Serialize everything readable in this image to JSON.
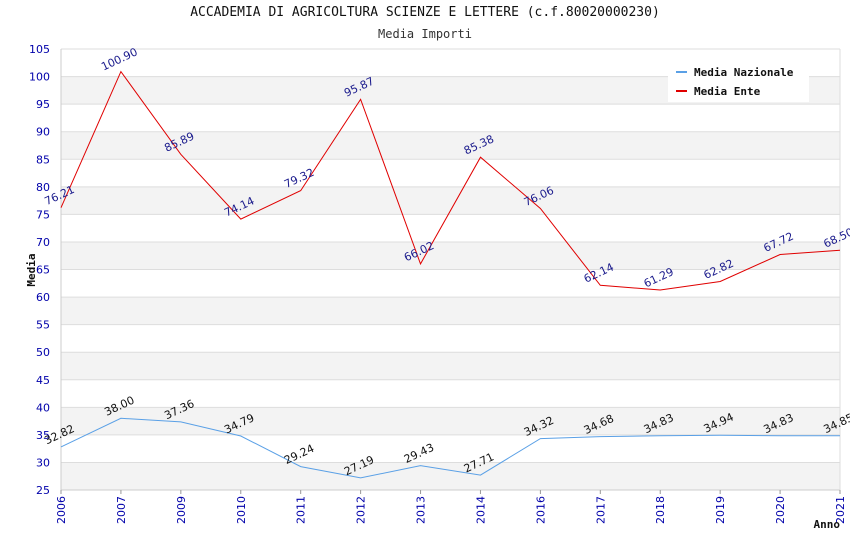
{
  "chart_data": {
    "type": "line",
    "title": "ACCADEMIA DI AGRICOLTURA SCIENZE E LETTERE (c.f.80020000230)",
    "subtitle": "Media Importi",
    "xlabel": "Anno",
    "ylabel": "Media",
    "ylim": [
      25,
      105
    ],
    "yticks": [
      25,
      30,
      35,
      40,
      45,
      50,
      55,
      60,
      65,
      70,
      75,
      80,
      85,
      90,
      95,
      100,
      105
    ],
    "categories": [
      "2006",
      "2007",
      "2009",
      "2010",
      "2011",
      "2012",
      "2013",
      "2014",
      "2016",
      "2017",
      "2018",
      "2019",
      "2020",
      "2021"
    ],
    "grid": true,
    "legend_position": "top-right",
    "series": [
      {
        "name": "Media Nazionale",
        "color": "#5aa0e6",
        "label_color": "#111111",
        "values": [
          32.82,
          38.0,
          37.36,
          34.79,
          29.24,
          27.19,
          29.43,
          27.71,
          34.32,
          34.68,
          34.83,
          34.94,
          34.83,
          34.85
        ],
        "labels": [
          "32.82",
          "38.00",
          "37.36",
          "34.79",
          "29.24",
          "27.19",
          "29.43",
          "27.71",
          "34.32",
          "34.68",
          "34.83",
          "34.94",
          "34.83",
          "34.85"
        ]
      },
      {
        "name": "Media Ente",
        "color": "#e00000",
        "label_color": "#1a1a8c",
        "values": [
          76.21,
          100.9,
          85.89,
          74.14,
          79.32,
          95.87,
          66.02,
          85.38,
          76.06,
          62.14,
          61.29,
          62.82,
          67.72,
          68.5
        ],
        "labels": [
          "76.21",
          "100.90",
          "85.89",
          "74.14",
          "79.32",
          "95.87",
          "66.02",
          "85.38",
          "76.06",
          "62.14",
          "61.29",
          "62.82",
          "67.72",
          "68.50"
        ]
      }
    ]
  }
}
